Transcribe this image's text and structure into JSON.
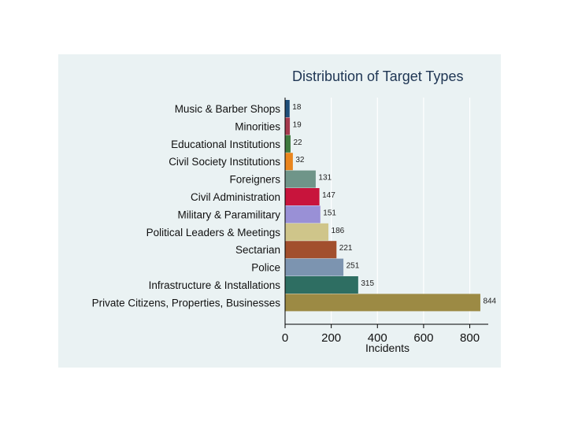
{
  "chart_data": {
    "type": "bar",
    "orientation": "horizontal",
    "title": "Distribution of Target Types",
    "xlabel": "Incidents",
    "ylabel": "",
    "xlim": [
      0,
      880
    ],
    "xticks": [
      0,
      200,
      400,
      600,
      800
    ],
    "grid": true,
    "legend": "none",
    "categories": [
      "Music & Barber Shops",
      "Minorities",
      "Educational Institutions",
      "Civil Society Institutions",
      "Foreigners",
      "Civil Administration",
      "Military & Paramilitary",
      "Political Leaders & Meetings",
      "Sectarian",
      "Police",
      "Infrastructure & Installations",
      "Private Citizens, Properties, Businesses"
    ],
    "values": [
      18,
      19,
      22,
      32,
      131,
      147,
      151,
      186,
      221,
      251,
      315,
      844
    ],
    "colors": [
      "#1f4e79",
      "#a63a4e",
      "#3f7a3f",
      "#e9851d",
      "#6f9589",
      "#c8143c",
      "#9990d6",
      "#cfc58a",
      "#a24f2d",
      "#7c94b0",
      "#2e6e62",
      "#9c8a44"
    ]
  }
}
